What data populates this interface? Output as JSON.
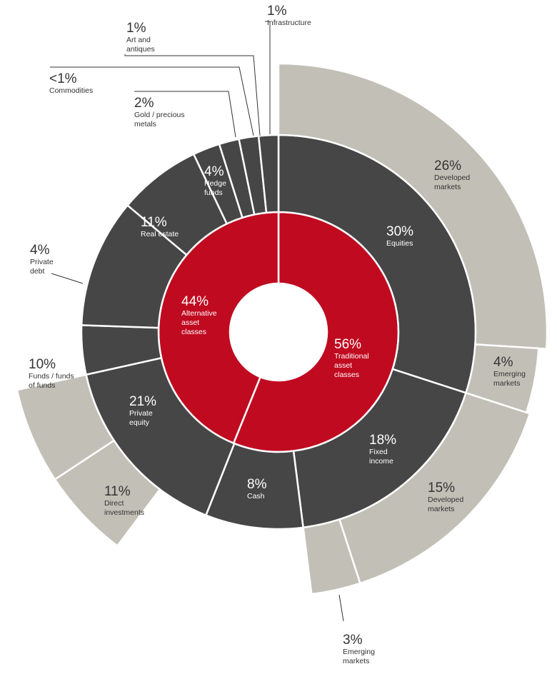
{
  "chart_data": {
    "type": "sunburst",
    "colors": {
      "inner": "#c00a20",
      "middle": "#464646",
      "outer": "#c2bfb6"
    },
    "rings": {
      "inner": [
        {
          "pct": "56%",
          "label": [
            "Traditional",
            "asset",
            "classes"
          ],
          "value": 56
        },
        {
          "pct": "44%",
          "label": [
            "Alternative",
            "asset",
            "classes"
          ],
          "value": 44
        }
      ],
      "middle": [
        {
          "pct": "30%",
          "label": [
            "Equities"
          ],
          "value": 30
        },
        {
          "pct": "18%",
          "label": [
            "Fixed",
            "income"
          ],
          "value": 18
        },
        {
          "pct": "8%",
          "label": [
            "Cash"
          ],
          "value": 8
        },
        {
          "pct": "21%",
          "label": [
            "Private",
            "equity"
          ],
          "value": 21
        },
        {
          "pct": "4%",
          "label": [
            "Private",
            "debt"
          ],
          "value": 4
        },
        {
          "pct": "11%",
          "label": [
            "Real estate"
          ],
          "value": 11
        },
        {
          "pct": "4%",
          "label": [
            "Hedge",
            "funds"
          ],
          "value": 4
        },
        {
          "pct": "2%",
          "label": [
            "Gold / precious",
            "metals"
          ],
          "value": 2
        },
        {
          "pct": "<1%",
          "label": [
            "Commodities"
          ],
          "value": 1
        },
        {
          "pct": "1%",
          "label": [
            "Art and",
            "antiques"
          ],
          "value": 1
        },
        {
          "pct": "1%",
          "label": [
            "Infrastructure"
          ],
          "value": 1
        }
      ],
      "outer": [
        {
          "pct": "26%",
          "label": [
            "Developed",
            "markets"
          ],
          "value": 26
        },
        {
          "pct": "4%",
          "label": [
            "Emerging",
            "markets"
          ],
          "value": 4
        },
        {
          "pct": "15%",
          "label": [
            "Developed",
            "markets"
          ],
          "value": 15
        },
        {
          "pct": "3%",
          "label": [
            "Emerging",
            "markets"
          ],
          "value": 3
        },
        {
          "pct": "10%",
          "label": [
            "Funds / funds",
            "of funds"
          ],
          "value": 10
        },
        {
          "pct": "11%",
          "label": [
            "Direct",
            "investments"
          ],
          "value": 11
        }
      ]
    }
  }
}
